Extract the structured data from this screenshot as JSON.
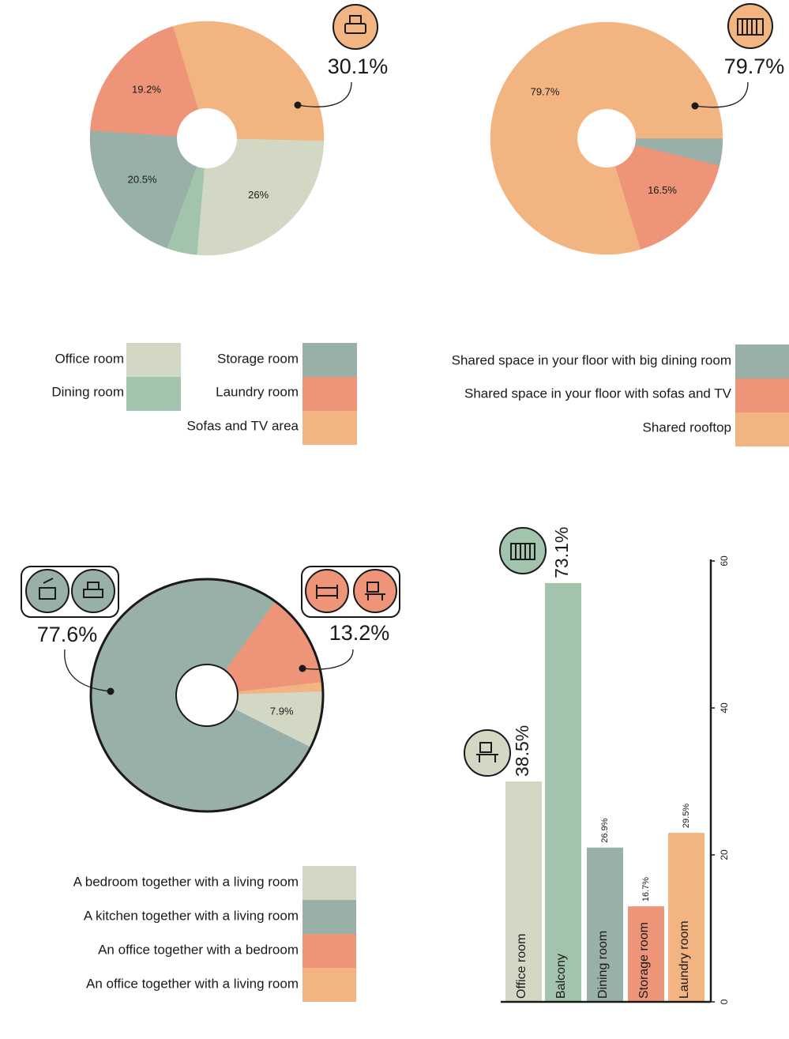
{
  "chart_data": [
    {
      "type": "pie",
      "categories": [
        "Office room",
        "Dining room",
        "Storage room",
        "Laundry room",
        "Sofas and TV area"
      ],
      "values": [
        26,
        4.2,
        20.5,
        19.2,
        30.1
      ],
      "value_labels": [
        "26%",
        null,
        "20.5%",
        "19.2%",
        "30.1%"
      ],
      "colors": [
        "#d3d8c4",
        "#a3c4ac",
        "#98b0a8",
        "#ee9479",
        "#f2b581"
      ]
    },
    {
      "type": "pie",
      "categories": [
        "Shared space in your floor with big dining room",
        "Shared space in your floor with sofas and TV",
        "Shared rooftop"
      ],
      "values": [
        3.8,
        16.5,
        79.7
      ],
      "value_labels": [
        null,
        "16.5%",
        "79.7%"
      ],
      "colors": [
        "#98b0a8",
        "#ee9479",
        "#f2b581"
      ]
    },
    {
      "type": "pie",
      "categories": [
        "A bedroom together with a living room",
        "A kitchen together with a living room",
        "An office together with a bedroom",
        "An office together with a living room"
      ],
      "values": [
        7.9,
        77.6,
        13.2,
        1.3
      ],
      "value_labels": [
        "7.9%",
        "77.6%",
        "13.2%",
        null
      ],
      "colors": [
        "#d3d8c4",
        "#98b0a8",
        "#ee9479",
        "#f2b581"
      ]
    },
    {
      "type": "bar",
      "categories": [
        "Office room",
        "Balcony",
        "Dining room",
        "Storage room",
        "Laundry room"
      ],
      "values": [
        30,
        57,
        21,
        13,
        23
      ],
      "bar_labels": [
        "38.5%",
        "73.1%",
        "26.9%",
        "16.7%",
        "29.5%"
      ],
      "colors": [
        "#d3d8c4",
        "#a3c4ac",
        "#98b0a8",
        "#ee9479",
        "#f2b581"
      ],
      "ylim": [
        0,
        60
      ],
      "yticks": [
        0,
        20,
        40,
        60
      ]
    }
  ]
}
